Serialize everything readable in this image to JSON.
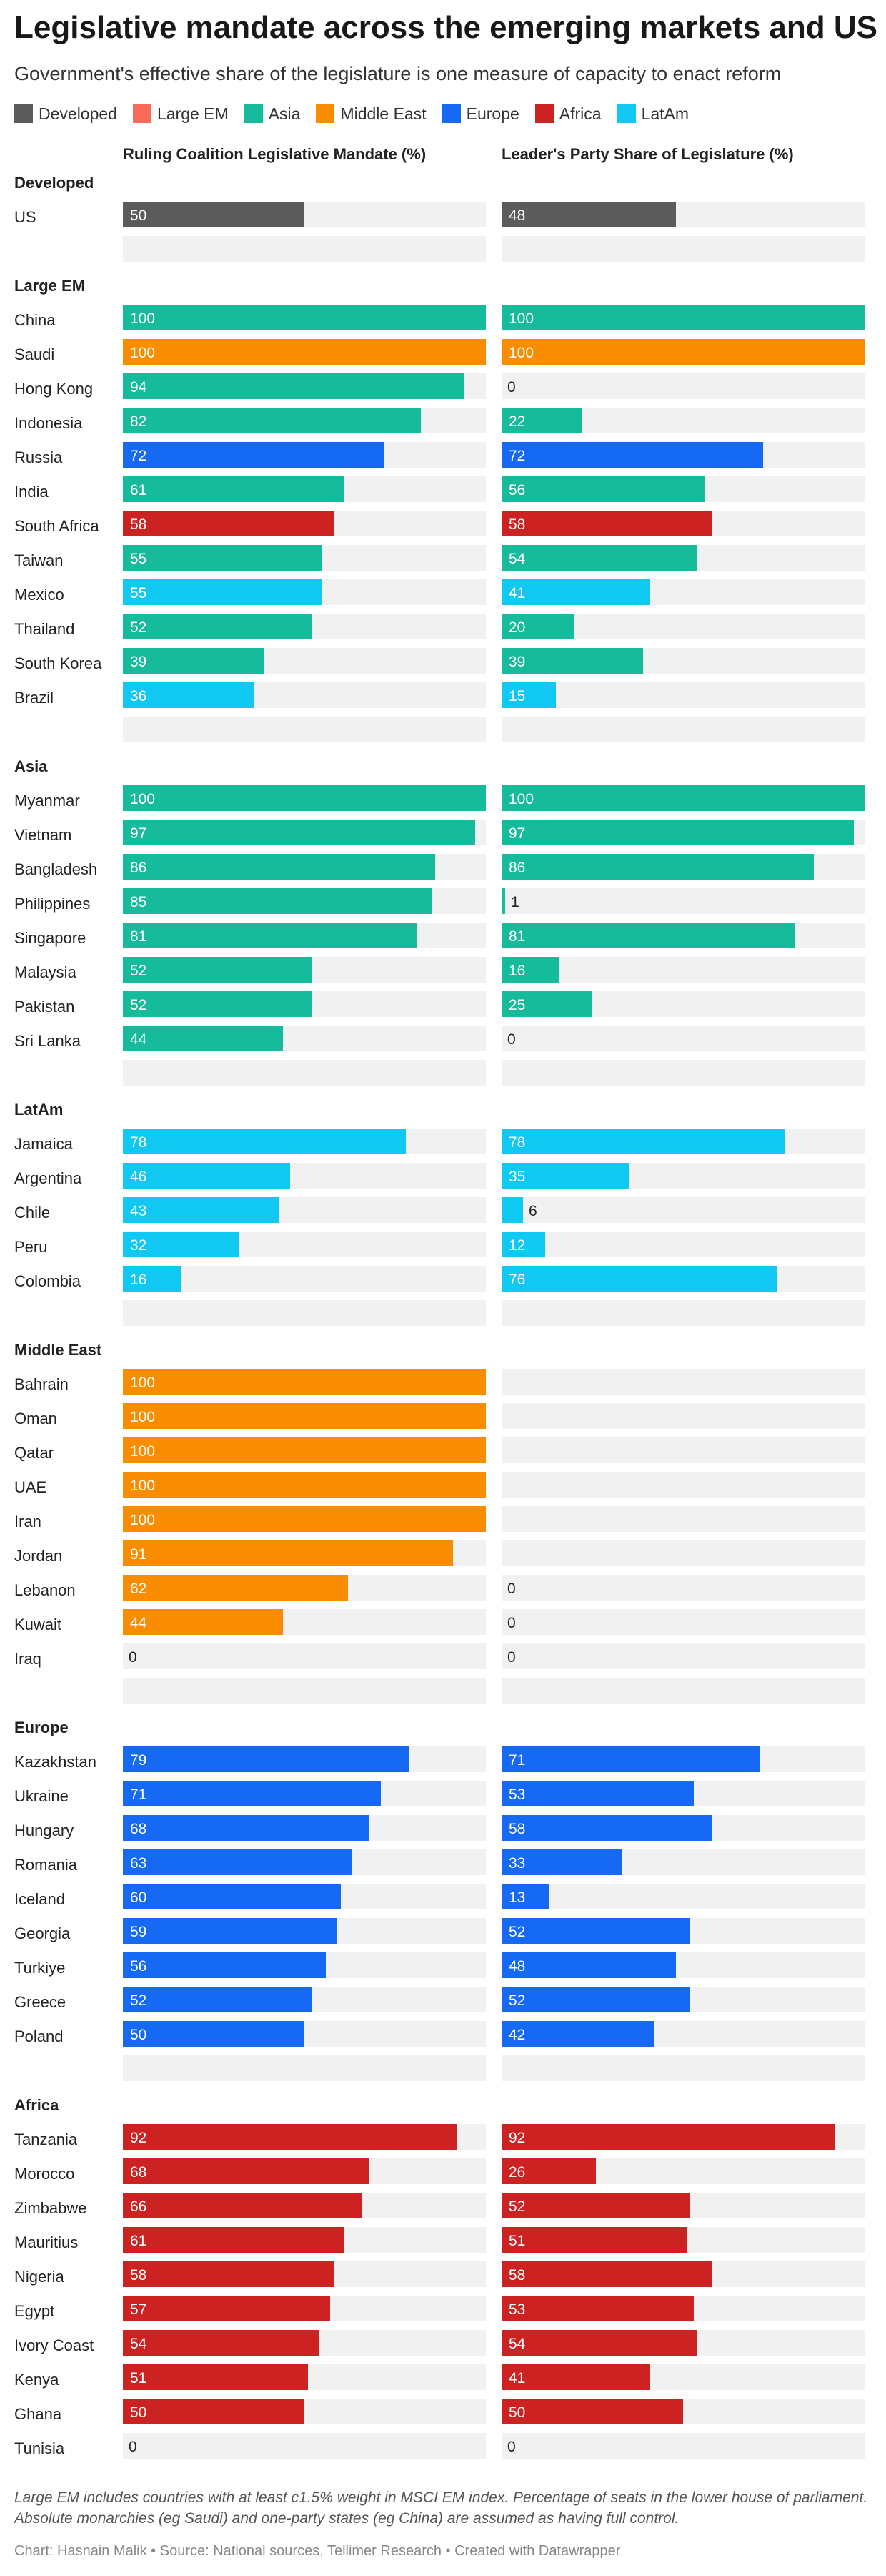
{
  "title": "Legislative mandate across the emerging markets and US",
  "subtitle": "Government's effective share of the legislature is one measure of capacity to enact reform",
  "legend": [
    {
      "name": "Developed",
      "color": "#5b5b5b"
    },
    {
      "name": "Large EM",
      "color": "#fa6a5b"
    },
    {
      "name": "Asia",
      "color": "#15bb9b"
    },
    {
      "name": "Middle East",
      "color": "#fa8c00"
    },
    {
      "name": "Europe",
      "color": "#1569f3"
    },
    {
      "name": "Africa",
      "color": "#cc2222"
    },
    {
      "name": "LatAm",
      "color": "#10c8f2"
    }
  ],
  "notes": "Large EM includes countries with at least c1.5% weight in MSCI EM index. Percentage of seats in the lower house of parliament. Absolute monarchies (eg Saudi) and one-party states (eg China) are assumed as having full control.",
  "byline": "Chart: Hasnain Malik • Source: National sources, Tellimer Research • Created with Datawrapper",
  "chart_data": {
    "type": "bar",
    "title": "Legislative mandate across the emerging markets and US",
    "subtitle": "Government's effective share of the legislature is one measure of capacity to enact reform",
    "xlim": [
      0,
      100
    ],
    "columns": [
      "Ruling Coalition Legislative Mandate (%)",
      "Leader's Party Share of Legislature (%)"
    ],
    "groups": [
      {
        "name": "Developed",
        "rows": [
          {
            "country": "US",
            "color": "#5b5b5b",
            "values": [
              50,
              48
            ]
          }
        ]
      },
      {
        "name": "Large EM",
        "rows": [
          {
            "country": "China",
            "color": "#15bb9b",
            "values": [
              100,
              100
            ]
          },
          {
            "country": "Saudi",
            "color": "#fa8c00",
            "values": [
              100,
              100
            ]
          },
          {
            "country": "Hong Kong",
            "color": "#15bb9b",
            "values": [
              94,
              0
            ]
          },
          {
            "country": "Indonesia",
            "color": "#15bb9b",
            "values": [
              82,
              22
            ]
          },
          {
            "country": "Russia",
            "color": "#1569f3",
            "values": [
              72,
              72
            ]
          },
          {
            "country": "India",
            "color": "#15bb9b",
            "values": [
              61,
              56
            ]
          },
          {
            "country": "South Africa",
            "color": "#cc2222",
            "values": [
              58,
              58
            ]
          },
          {
            "country": "Taiwan",
            "color": "#15bb9b",
            "values": [
              55,
              54
            ]
          },
          {
            "country": "Mexico",
            "color": "#10c8f2",
            "values": [
              55,
              41
            ]
          },
          {
            "country": "Thailand",
            "color": "#15bb9b",
            "values": [
              52,
              20
            ]
          },
          {
            "country": "South Korea",
            "color": "#15bb9b",
            "values": [
              39,
              39
            ]
          },
          {
            "country": "Brazil",
            "color": "#10c8f2",
            "values": [
              36,
              15
            ]
          }
        ]
      },
      {
        "name": "Asia",
        "rows": [
          {
            "country": "Myanmar",
            "color": "#15bb9b",
            "values": [
              100,
              100
            ]
          },
          {
            "country": "Vietnam",
            "color": "#15bb9b",
            "values": [
              97,
              97
            ]
          },
          {
            "country": "Bangladesh",
            "color": "#15bb9b",
            "values": [
              86,
              86
            ]
          },
          {
            "country": "Philippines",
            "color": "#15bb9b",
            "values": [
              85,
              1
            ]
          },
          {
            "country": "Singapore",
            "color": "#15bb9b",
            "values": [
              81,
              81
            ]
          },
          {
            "country": "Malaysia",
            "color": "#15bb9b",
            "values": [
              52,
              16
            ]
          },
          {
            "country": "Pakistan",
            "color": "#15bb9b",
            "values": [
              52,
              25
            ]
          },
          {
            "country": "Sri Lanka",
            "color": "#15bb9b",
            "values": [
              44,
              0
            ]
          }
        ]
      },
      {
        "name": "LatAm",
        "rows": [
          {
            "country": "Jamaica",
            "color": "#10c8f2",
            "values": [
              78,
              78
            ]
          },
          {
            "country": "Argentina",
            "color": "#10c8f2",
            "values": [
              46,
              35
            ]
          },
          {
            "country": "Chile",
            "color": "#10c8f2",
            "values": [
              43,
              6
            ]
          },
          {
            "country": "Peru",
            "color": "#10c8f2",
            "values": [
              32,
              12
            ]
          },
          {
            "country": "Colombia",
            "color": "#10c8f2",
            "values": [
              16,
              76
            ]
          }
        ]
      },
      {
        "name": "Middle East",
        "rows": [
          {
            "country": "Bahrain",
            "color": "#fa8c00",
            "values": [
              100,
              null
            ]
          },
          {
            "country": "Oman",
            "color": "#fa8c00",
            "values": [
              100,
              null
            ]
          },
          {
            "country": "Qatar",
            "color": "#fa8c00",
            "values": [
              100,
              null
            ]
          },
          {
            "country": "UAE",
            "color": "#fa8c00",
            "values": [
              100,
              null
            ]
          },
          {
            "country": "Iran",
            "color": "#fa8c00",
            "values": [
              100,
              null
            ]
          },
          {
            "country": "Jordan",
            "color": "#fa8c00",
            "values": [
              91,
              null
            ]
          },
          {
            "country": "Lebanon",
            "color": "#fa8c00",
            "values": [
              62,
              0
            ]
          },
          {
            "country": "Kuwait",
            "color": "#fa8c00",
            "values": [
              44,
              0
            ]
          },
          {
            "country": "Iraq",
            "color": "#fa8c00",
            "values": [
              0,
              0
            ]
          }
        ]
      },
      {
        "name": "Europe",
        "rows": [
          {
            "country": "Kazakhstan",
            "color": "#1569f3",
            "values": [
              79,
              71
            ]
          },
          {
            "country": "Ukraine",
            "color": "#1569f3",
            "values": [
              71,
              53
            ]
          },
          {
            "country": "Hungary",
            "color": "#1569f3",
            "values": [
              68,
              58
            ]
          },
          {
            "country": "Romania",
            "color": "#1569f3",
            "values": [
              63,
              33
            ]
          },
          {
            "country": "Iceland",
            "color": "#1569f3",
            "values": [
              60,
              13
            ]
          },
          {
            "country": "Georgia",
            "color": "#1569f3",
            "values": [
              59,
              52
            ]
          },
          {
            "country": "Turkiye",
            "color": "#1569f3",
            "values": [
              56,
              48
            ]
          },
          {
            "country": "Greece",
            "color": "#1569f3",
            "values": [
              52,
              52
            ]
          },
          {
            "country": "Poland",
            "color": "#1569f3",
            "values": [
              50,
              42
            ]
          }
        ]
      },
      {
        "name": "Africa",
        "rows": [
          {
            "country": "Tanzania",
            "color": "#cc2222",
            "values": [
              92,
              92
            ]
          },
          {
            "country": "Morocco",
            "color": "#cc2222",
            "values": [
              68,
              26
            ]
          },
          {
            "country": "Zimbabwe",
            "color": "#cc2222",
            "values": [
              66,
              52
            ]
          },
          {
            "country": "Mauritius",
            "color": "#cc2222",
            "values": [
              61,
              51
            ]
          },
          {
            "country": "Nigeria",
            "color": "#cc2222",
            "values": [
              58,
              58
            ]
          },
          {
            "country": "Egypt",
            "color": "#cc2222",
            "values": [
              57,
              53
            ]
          },
          {
            "country": "Ivory Coast",
            "color": "#cc2222",
            "values": [
              54,
              54
            ]
          },
          {
            "country": "Kenya",
            "color": "#cc2222",
            "values": [
              51,
              41
            ]
          },
          {
            "country": "Ghana",
            "color": "#cc2222",
            "values": [
              50,
              50
            ]
          },
          {
            "country": "Tunisia",
            "color": "#cc2222",
            "values": [
              0,
              0
            ]
          }
        ]
      }
    ]
  }
}
